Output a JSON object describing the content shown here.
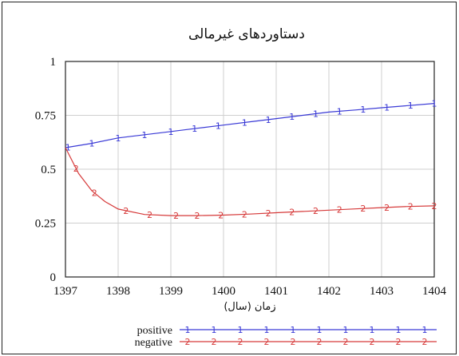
{
  "chart_data": {
    "type": "line",
    "title": "دستاوردهای غیرمالی",
    "xlabel": "زمان (سال)",
    "ylabel": "",
    "xlim": [
      1397,
      1404
    ],
    "ylim": [
      0,
      1
    ],
    "x_ticks": [
      "1397",
      "1398",
      "1399",
      "1400",
      "1401",
      "1402",
      "1403",
      "1404"
    ],
    "y_ticks": [
      "0",
      "0.25",
      "0.5",
      "0.75",
      "1"
    ],
    "grid": true,
    "legend_position": "bottom-center",
    "series": [
      {
        "name": "positive",
        "marker": "1",
        "color": "#3a3ad6",
        "x": [
          1397,
          1397.5,
          1398,
          1398.5,
          1399,
          1399.5,
          1400,
          1400.5,
          1401,
          1401.5,
          1402,
          1402.5,
          1403,
          1403.5,
          1404
        ],
        "y": [
          0.6,
          0.62,
          0.645,
          0.66,
          0.675,
          0.69,
          0.705,
          0.72,
          0.735,
          0.75,
          0.765,
          0.775,
          0.785,
          0.795,
          0.805
        ]
      },
      {
        "name": "negative",
        "marker": "2",
        "color": "#d63a3a",
        "x": [
          1397,
          1397.25,
          1397.5,
          1397.75,
          1398,
          1398.5,
          1399,
          1399.5,
          1400,
          1400.5,
          1401,
          1401.5,
          1402,
          1402.5,
          1403,
          1403.5,
          1404
        ],
        "y": [
          0.6,
          0.48,
          0.4,
          0.35,
          0.315,
          0.29,
          0.285,
          0.285,
          0.287,
          0.292,
          0.298,
          0.304,
          0.31,
          0.316,
          0.322,
          0.327,
          0.33
        ]
      }
    ],
    "marker_positions": {
      "positive": [
        1397.05,
        1397.5,
        1398,
        1398.5,
        1399,
        1399.45,
        1399.9,
        1400.4,
        1400.85,
        1401.3,
        1401.75,
        1402.2,
        1402.65,
        1403.1,
        1403.55,
        1404
      ],
      "negative": [
        1397.2,
        1397.55,
        1398.15,
        1398.6,
        1399.1,
        1399.5,
        1399.95,
        1400.4,
        1400.85,
        1401.3,
        1401.75,
        1402.2,
        1402.65,
        1403.1,
        1403.55,
        1404
      ]
    },
    "legend": [
      {
        "name": "positive",
        "marker": "1"
      },
      {
        "name": "negative",
        "marker": "2"
      }
    ]
  }
}
